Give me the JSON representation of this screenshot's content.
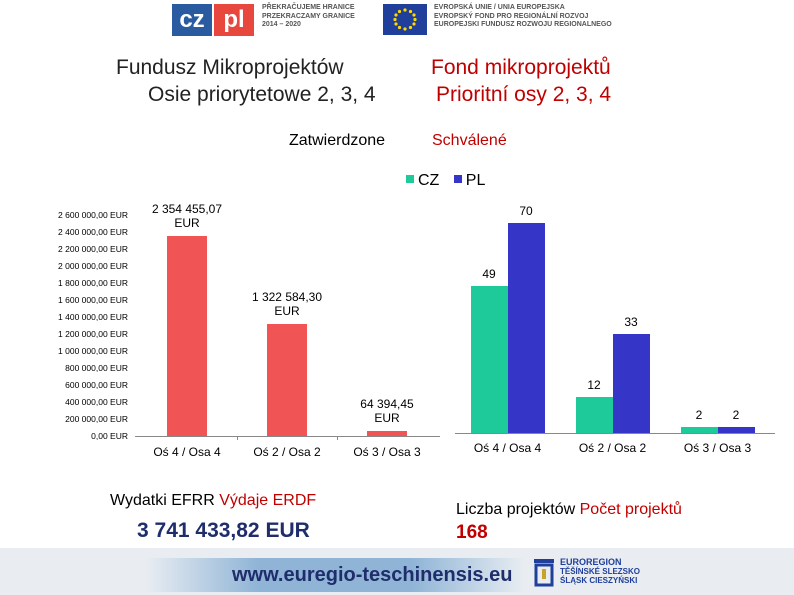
{
  "header": {
    "logo_cz": "cz",
    "logo_pl": "pl",
    "program_lines": [
      "PŘEKRAČUJEME HRANICE",
      "PRZEKRACZAMY GRANICE",
      "2014 – 2020"
    ],
    "eu_lines": [
      "EVROPSKÁ UNIE / UNIA EUROPEJSKA",
      "EVROPSKÝ FOND PRO REGIONÁLNÍ ROZVOJ",
      "EUROPEJSKI FUNDUSZ ROZWOJU REGIONALNEGO"
    ]
  },
  "titles": {
    "pl_line1": "Fundusz Mikroprojektów",
    "pl_line2": "Osie priorytetowe 2, 3, 4",
    "cz_line1": "Fond mikroprojektů",
    "cz_line2": "Prioritní osy 2, 3, 4",
    "approved_pl": "Zatwierdzone",
    "approved_cz": "Schválené"
  },
  "colors": {
    "eur_bar": "#f05454",
    "cz": "#1ec99a",
    "pl": "#3535c8",
    "cz_text": "#c00000",
    "dark_title": "#222222"
  },
  "chart_data": [
    {
      "type": "bar",
      "categories": [
        "Oś 4 / Osa 4",
        "Oś 2 / Osa 2",
        "Oś 3 / Osa 3"
      ],
      "values": [
        2354455.07,
        1322584.3,
        64394.45
      ],
      "data_labels": [
        "2 354 455,07 EUR",
        "1 322 584,30 EUR",
        "64 394,45 EUR"
      ],
      "ylim": [
        0,
        2600000
      ],
      "yticks": [
        "0,00 EUR",
        "200 000,00 EUR",
        "400 000,00 EUR",
        "600 000,00 EUR",
        "800 000,00 EUR",
        "1 000 000,00 EUR",
        "1 200 000,00 EUR",
        "1 400 000,00 EUR",
        "1 600 000,00 EUR",
        "1 800 000,00 EUR",
        "2 000 000,00 EUR",
        "2 200 000,00 EUR",
        "2 400 000,00 EUR",
        "2 600 000,00 EUR"
      ]
    },
    {
      "type": "bar",
      "categories": [
        "Oś 4 / Osa 4",
        "Oś 2 / Osa 2",
        "Oś 3 / Osa 3"
      ],
      "series": [
        {
          "name": "CZ",
          "values": [
            49,
            12,
            2
          ]
        },
        {
          "name": "PL",
          "values": [
            70,
            33,
            2
          ]
        }
      ],
      "ylim": [
        0,
        75
      ],
      "legend": "top"
    }
  ],
  "summary": {
    "expenditure_pl": "Wydatki EFRR",
    "expenditure_cz": "Výdaje ERDF",
    "expenditure_value": "3 741 433,82 EUR",
    "projects_pl": "Liczba projektów",
    "projects_cz": "Počet projektů",
    "projects_value": "168"
  },
  "footer": {
    "url": "www.euregio-teschinensis.eu",
    "euroregion_lines": [
      "EUROREGION",
      "TĚŠÍNSKÉ SLEZSKO",
      "ŚLĄSK CIESZYŃSKI"
    ]
  }
}
